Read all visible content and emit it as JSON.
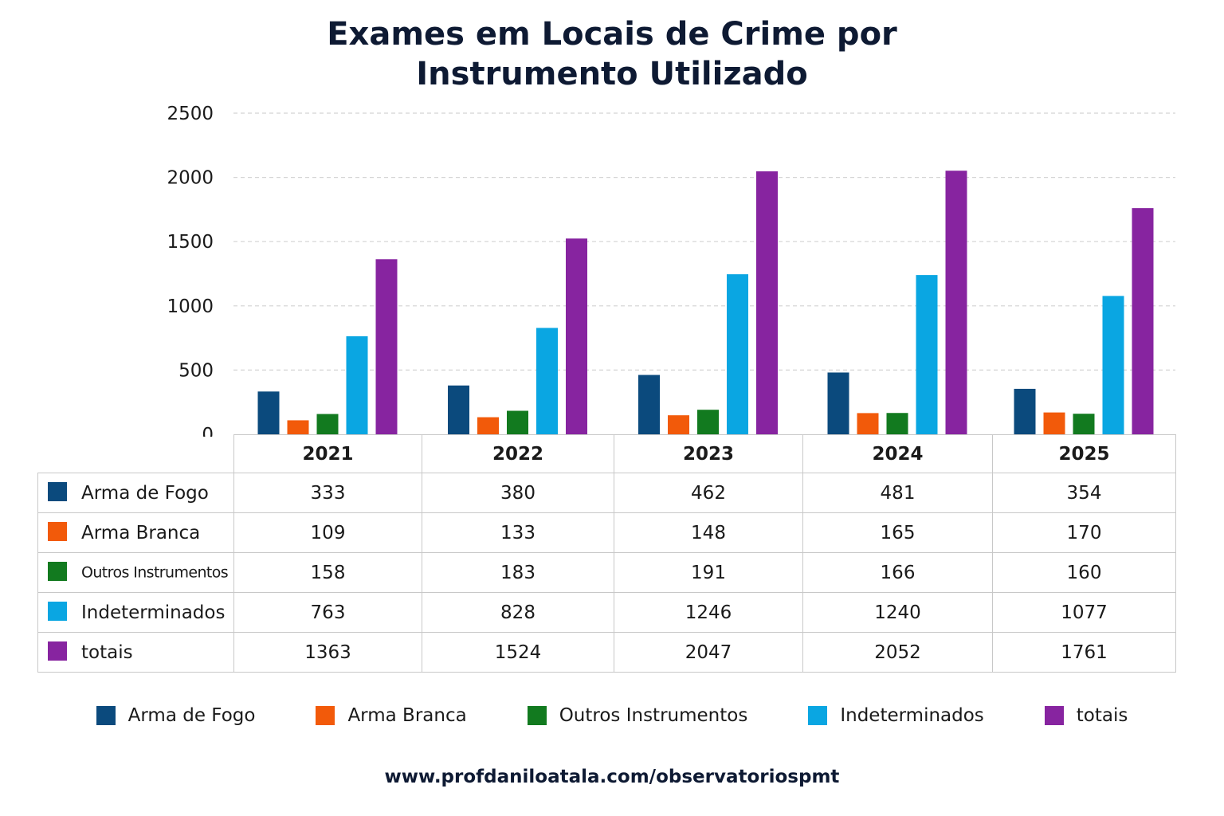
{
  "chart_data": {
    "type": "bar",
    "title_lines": [
      "Exames em Locais de Crime por",
      "Instrumento Utilizado"
    ],
    "categories": [
      "2021",
      "2022",
      "2023",
      "2024",
      "2025"
    ],
    "ylim": [
      0,
      2500
    ],
    "yticks": [
      "0",
      "500",
      "1000",
      "1500",
      "2000",
      "2500"
    ],
    "grid": true,
    "legend_position": "bottom",
    "series": [
      {
        "name": "Arma de Fogo",
        "color": "#0b4a7d",
        "values": [
          333,
          380,
          462,
          481,
          354
        ]
      },
      {
        "name": "Arma Branca",
        "color": "#f25a0a",
        "values": [
          109,
          133,
          148,
          165,
          170
        ]
      },
      {
        "name": "Outros Instrumentos",
        "color": "#127a1f",
        "values": [
          158,
          183,
          191,
          166,
          160
        ]
      },
      {
        "name": "Indeterminados",
        "color": "#0aa6e2",
        "values": [
          763,
          828,
          1246,
          1240,
          1077
        ]
      },
      {
        "name": "totais",
        "color": "#8724a0",
        "values": [
          1363,
          1524,
          2047,
          2052,
          1761
        ]
      }
    ]
  },
  "footer": "www.profdaniloatala.com/observatoriospmt"
}
